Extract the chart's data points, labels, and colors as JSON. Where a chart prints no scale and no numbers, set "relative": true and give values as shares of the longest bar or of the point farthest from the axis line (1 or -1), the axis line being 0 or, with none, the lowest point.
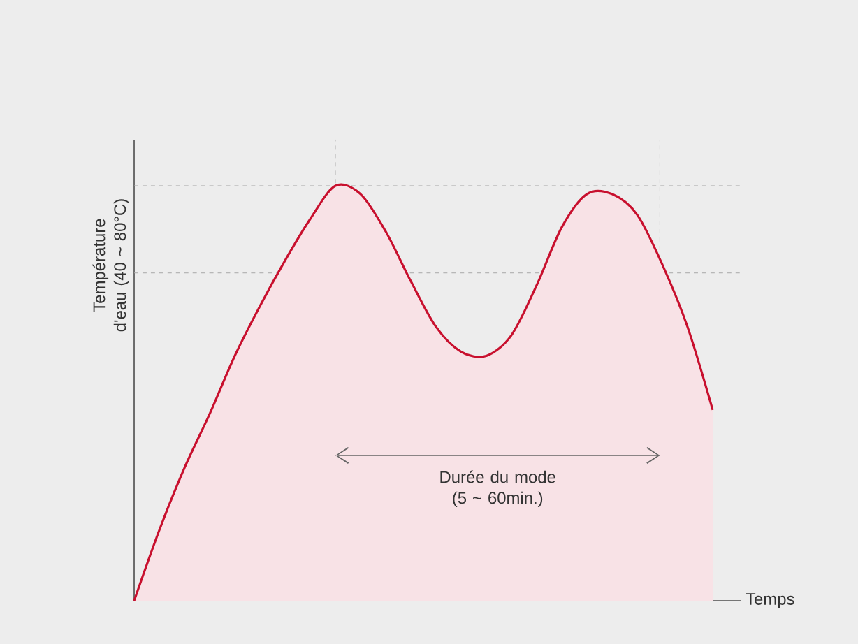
{
  "chart_data": {
    "type": "area",
    "relative": true,
    "xlabel": "Temps",
    "ylabel": "Température d'eau (40 ~ 80°C)",
    "color": "#c8102e",
    "categories": [
      null,
      null,
      null,
      null,
      null,
      null,
      null,
      null,
      null,
      null,
      null,
      null,
      null,
      null,
      null,
      null,
      null,
      null,
      null,
      null,
      null,
      null,
      null,
      null
    ],
    "values": [
      0,
      0.17,
      0.32,
      0.45,
      0.59,
      0.71,
      0.82,
      0.92,
      1.0,
      0.98,
      0.89,
      0.77,
      0.66,
      0.6,
      0.59,
      0.64,
      0.76,
      0.9,
      0.98,
      0.98,
      0.93,
      0.81,
      0.66,
      0.46
    ],
    "ref_lines": [
      {
        "axis": "y",
        "value": 1.0,
        "line_style": "dashed",
        "color": "#aaaaaa"
      },
      {
        "axis": "y",
        "value": 0.79,
        "line_style": "dashed",
        "color": "#aaaaaa"
      },
      {
        "axis": "y",
        "value": 0.59,
        "line_style": "dashed",
        "color": "#aaaaaa"
      }
    ],
    "annotations": [
      "Durée du mode (5 ~ 60min.)"
    ]
  }
}
